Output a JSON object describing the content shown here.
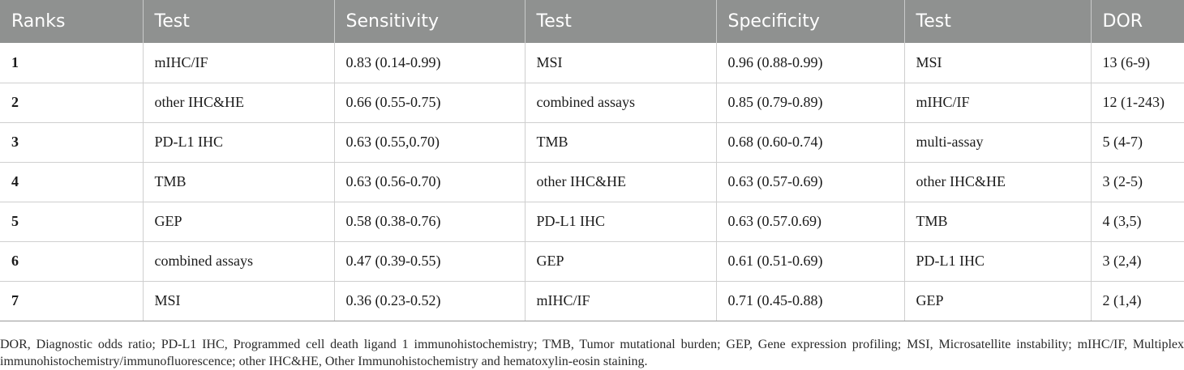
{
  "table": {
    "headers": [
      "Ranks",
      "Test",
      "Sensitivity",
      "Test",
      "Specificity",
      "Test",
      "DOR"
    ],
    "rows": [
      [
        "1",
        "mIHC/IF",
        "0.83 (0.14-0.99)",
        "MSI",
        "0.96 (0.88-0.99)",
        "MSI",
        "13 (6-9)"
      ],
      [
        "2",
        "other IHC&HE",
        "0.66 (0.55-0.75)",
        "combined assays",
        "0.85 (0.79-0.89)",
        "mIHC/IF",
        "12 (1-243)"
      ],
      [
        "3",
        "PD-L1 IHC",
        "0.63 (0.55,0.70)",
        "TMB",
        "0.68 (0.60-0.74)",
        "multi-assay",
        "5 (4-7)"
      ],
      [
        "4",
        "TMB",
        "0.63 (0.56-0.70)",
        "other IHC&HE",
        "0.63 (0.57-0.69)",
        "other IHC&HE",
        "3 (2-5)"
      ],
      [
        "5",
        "GEP",
        "0.58 (0.38-0.76)",
        "PD-L1 IHC",
        "0.63 (0.57.0.69)",
        "TMB",
        "4 (3,5)"
      ],
      [
        "6",
        "combined assays",
        "0.47 (0.39-0.55)",
        "GEP",
        "0.61 (0.51-0.69)",
        "PD-L1 IHC",
        "3 (2,4)"
      ],
      [
        "7",
        "MSI",
        "0.36 (0.23-0.52)",
        "mIHC/IF",
        "0.71 (0.45-0.88)",
        "GEP",
        "2 (1,4)"
      ]
    ]
  },
  "footnote": "DOR, Diagnostic odds ratio; PD-L1 IHC, Programmed cell death ligand 1 immunohistochemistry; TMB, Tumor mutational burden; GEP, Gene expression profiling; MSI, Microsatellite instability; mIHC/IF, Multiplex immunohistochemistry/immunofluorescence; other IHC&HE, Other Immunohistochemistry and hematoxylin-eosin staining.",
  "colors": {
    "header_background": "#8f9190",
    "header_text": "#ffffff",
    "body_text": "#1a1a1a",
    "grid_line": "#cfcfcf"
  }
}
